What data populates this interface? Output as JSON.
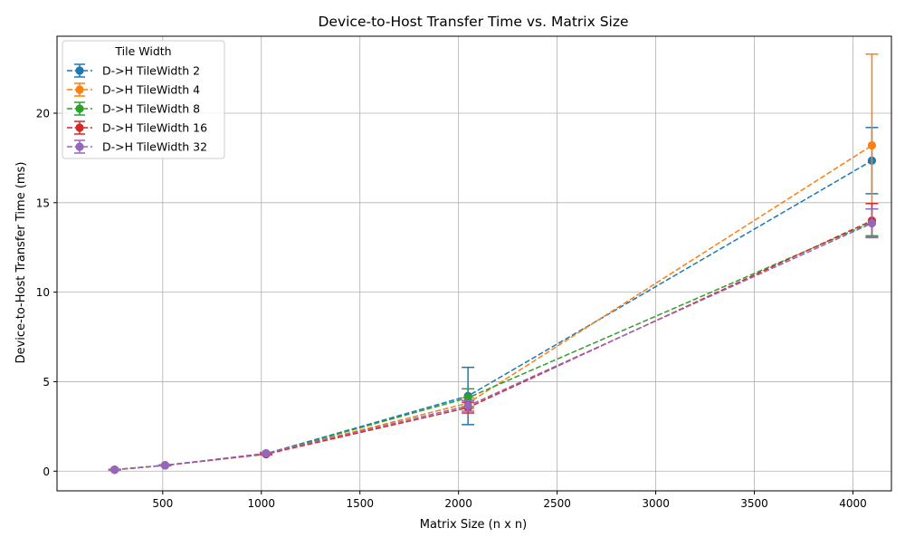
{
  "chart_data": {
    "type": "line",
    "title": "Device-to-Host Transfer Time vs. Matrix Size",
    "xlabel": "Matrix Size (n x n)",
    "ylabel": "Device-to-Host Transfer Time (ms)",
    "xlim": [
      -36,
      4195
    ],
    "ylim": [
      -1.1,
      24.3
    ],
    "xticks": [
      500,
      1000,
      1500,
      2000,
      2500,
      3000,
      3500,
      4000
    ],
    "yticks": [
      0,
      5,
      10,
      15,
      20
    ],
    "grid": true,
    "legend": {
      "title": "Tile Width",
      "placement": "top-left"
    },
    "x": [
      256,
      512,
      1024,
      2048,
      4096
    ],
    "series": [
      {
        "name": "D->H TileWidth 2",
        "color": "#1f77b4",
        "values": [
          0.08,
          0.33,
          0.98,
          4.2,
          17.35
        ],
        "errors": [
          0.01,
          0.02,
          0.05,
          1.6,
          1.85
        ]
      },
      {
        "name": "D->H TileWidth 4",
        "color": "#ff7f0e",
        "values": [
          0.08,
          0.33,
          0.97,
          3.8,
          18.2
        ],
        "errors": [
          0.01,
          0.02,
          0.04,
          0.3,
          5.1
        ]
      },
      {
        "name": "D->H TileWidth 8",
        "color": "#2ca02c",
        "values": [
          0.08,
          0.33,
          0.96,
          4.1,
          13.9
        ],
        "errors": [
          0.01,
          0.02,
          0.04,
          0.5,
          0.75
        ]
      },
      {
        "name": "D->H TileWidth 16",
        "color": "#d62728",
        "values": [
          0.08,
          0.32,
          0.95,
          3.55,
          14.0
        ],
        "errors": [
          0.01,
          0.02,
          0.03,
          0.3,
          0.95
        ]
      },
      {
        "name": "D->H TileWidth 32",
        "color": "#9467bd",
        "values": [
          0.08,
          0.32,
          1.0,
          3.65,
          13.85
        ],
        "errors": [
          0.01,
          0.02,
          0.05,
          0.3,
          0.8
        ]
      }
    ]
  }
}
